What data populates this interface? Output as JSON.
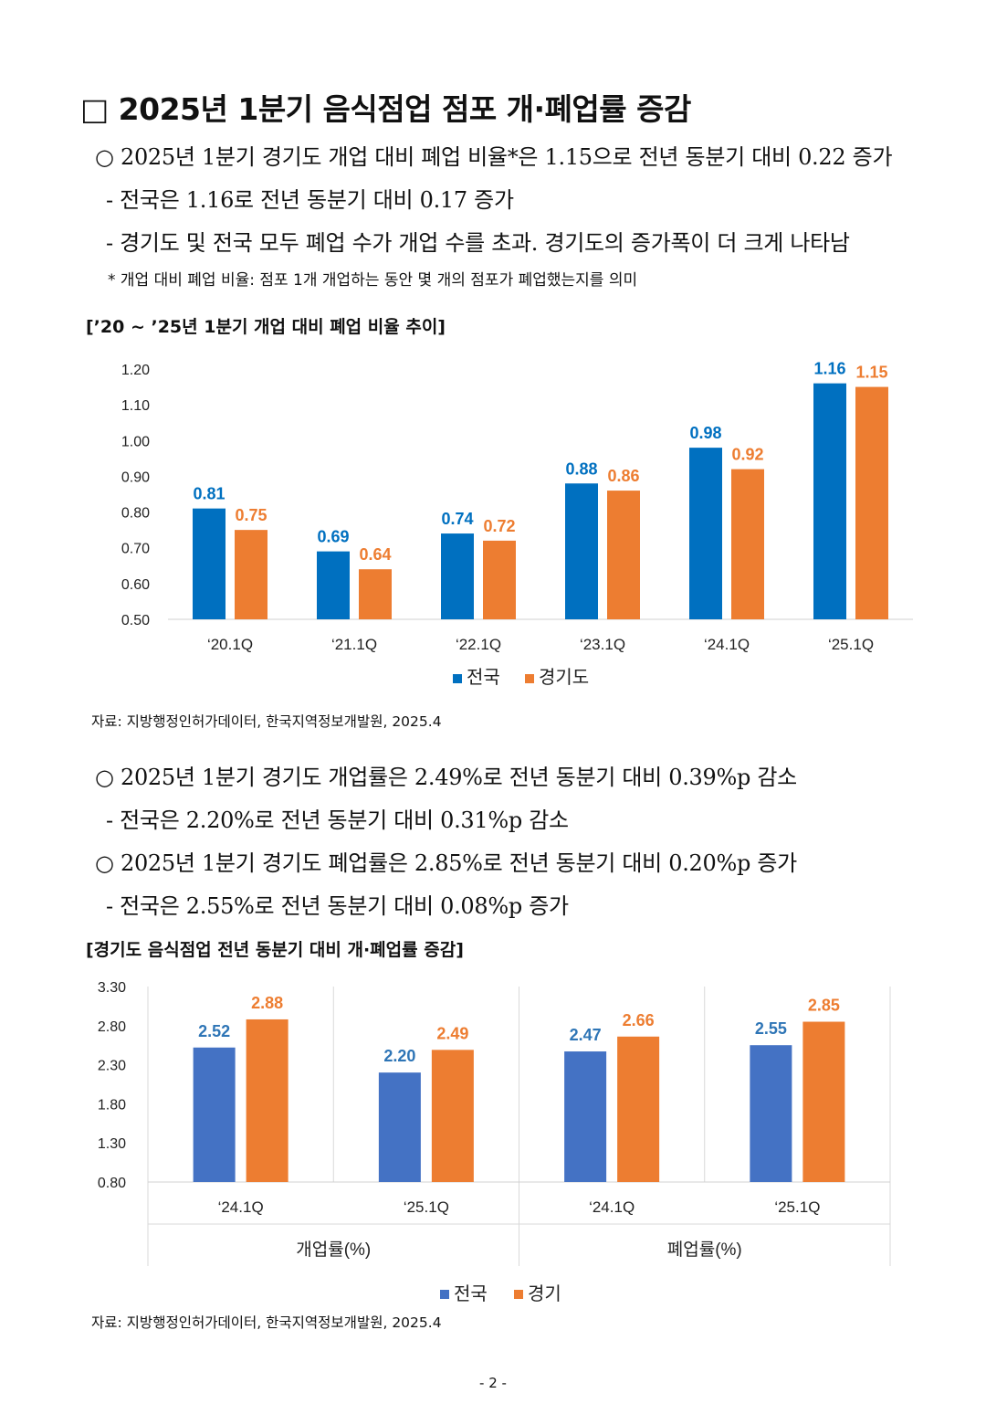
{
  "heading": "□ 2025년 1분기 음식점업 점포 개·폐업률 증감",
  "section1": {
    "bullet1": "○ 2025년 1분기 경기도 개업 대비 폐업 비율*은 1.15으로 전년 동분기 대비 0.22 증가",
    "sub1": "- 전국은  1.16로 전년 동분기 대비 0.17 증가",
    "sub2": "- 경기도 및 전국 모두 폐업 수가 개업 수를 초과. 경기도의 증가폭이 더 크게 나타남",
    "footnote": "* 개업 대비 폐업 비율: 점포 1개 개업하는 동안 몇 개의 점포가 폐업했는지를 의미"
  },
  "chart1_caption": "[’20 ~ ’25년 1분기 개업 대비 폐업 비율 추이]",
  "source1": "자료: 지방행정인허가데이터, 한국지역정보개발원, 2025.4",
  "section2": {
    "bullet1": "○ 2025년 1분기 경기도 개업률은 2.49%로 전년 동분기 대비 0.39%p 감소",
    "sub1": "- 전국은  2.20%로 전년 동분기 대비 0.31%p  감소",
    "bullet2": "○ 2025년 1분기 경기도 폐업률은 2.85%로 전년 동분기 대비 0.20%p 증가",
    "sub2": "- 전국은  2.55%로 전년 동분기 대비 0.08%p  증가"
  },
  "chart2_caption": "[경기도 음식점업 전년 동분기 대비 개·폐업률 증감]",
  "source2": "자료: 지방행정인허가데이터, 한국지역정보개발원, 2025.4",
  "page_number": "- 2 -",
  "chart_data": [
    {
      "type": "bar",
      "categories": [
        "‘20.1Q",
        "‘21.1Q",
        "‘22.1Q",
        "‘23.1Q",
        "‘24.1Q",
        "‘25.1Q"
      ],
      "series": [
        {
          "name": "전국",
          "values": [
            0.81,
            0.69,
            0.74,
            0.88,
            0.98,
            1.16
          ],
          "labels": [
            "0.81",
            "0.69",
            "0.74",
            "0.88",
            "0.98",
            "1.16"
          ],
          "color": "#0070C0"
        },
        {
          "name": "경기도",
          "values": [
            0.75,
            0.64,
            0.72,
            0.86,
            0.92,
            1.15
          ],
          "labels": [
            "0.75",
            "0.64",
            "0.72",
            "0.86",
            "0.92",
            "1.15"
          ],
          "color": "#ED7D31"
        }
      ],
      "yticks": [
        "0.50",
        "0.60",
        "0.70",
        "0.80",
        "0.90",
        "1.00",
        "1.10",
        "1.20"
      ],
      "ylim": [
        0.5,
        1.2
      ],
      "grid": false,
      "legend": "bottom-center"
    },
    {
      "type": "bar",
      "categories": [
        "‘24.1Q",
        "‘25.1Q",
        "‘24.1Q",
        "‘25.1Q"
      ],
      "groups": [
        "개업률(%)",
        "폐업률(%)"
      ],
      "series": [
        {
          "name": "전국",
          "values": [
            2.52,
            2.2,
            2.47,
            2.55
          ],
          "labels": [
            "2.52",
            "2.20",
            "2.47",
            "2.55"
          ],
          "color": "#4472C4",
          "label_color": "#2E75B6"
        },
        {
          "name": "경기",
          "values": [
            2.88,
            2.49,
            2.66,
            2.85
          ],
          "labels": [
            "2.88",
            "2.49",
            "2.66",
            "2.85"
          ],
          "color": "#ED7D31",
          "label_color": "#ED7D31"
        }
      ],
      "yticks": [
        "0.80",
        "1.30",
        "1.80",
        "2.30",
        "2.80",
        "3.30"
      ],
      "ylim": [
        0.8,
        3.3
      ],
      "grid": false,
      "legend": "bottom-center"
    }
  ]
}
